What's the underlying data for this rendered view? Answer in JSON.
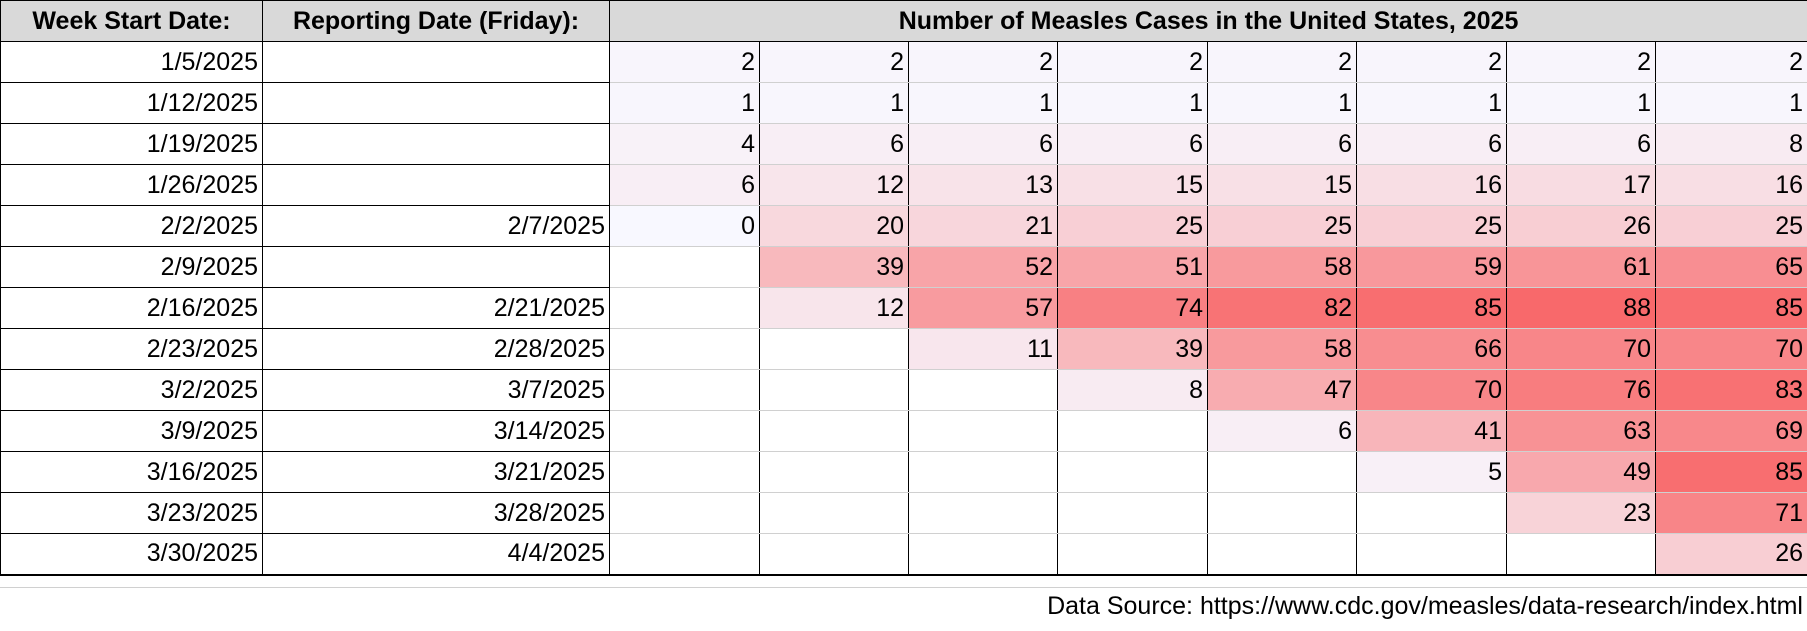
{
  "headers": {
    "week_start": "Week Start Date:",
    "reporting_date": "Reporting Date (Friday):",
    "cases_title": "Number of Measles Cases in the United States, 2025"
  },
  "rows": [
    {
      "week_start": "1/5/2025",
      "reporting_date": "",
      "values": [
        2,
        2,
        2,
        2,
        2,
        2,
        2,
        2
      ]
    },
    {
      "week_start": "1/12/2025",
      "reporting_date": "",
      "values": [
        1,
        1,
        1,
        1,
        1,
        1,
        1,
        1
      ]
    },
    {
      "week_start": "1/19/2025",
      "reporting_date": "",
      "values": [
        4,
        6,
        6,
        6,
        6,
        6,
        6,
        8
      ]
    },
    {
      "week_start": "1/26/2025",
      "reporting_date": "",
      "values": [
        6,
        12,
        13,
        15,
        15,
        16,
        17,
        16
      ]
    },
    {
      "week_start": "2/2/2025",
      "reporting_date": "2/7/2025",
      "values": [
        0,
        20,
        21,
        25,
        25,
        25,
        26,
        25
      ]
    },
    {
      "week_start": "2/9/2025",
      "reporting_date": "",
      "values": [
        null,
        39,
        52,
        51,
        58,
        59,
        61,
        65
      ]
    },
    {
      "week_start": "2/16/2025",
      "reporting_date": "2/21/2025",
      "values": [
        null,
        12,
        57,
        74,
        82,
        85,
        88,
        85
      ]
    },
    {
      "week_start": "2/23/2025",
      "reporting_date": "2/28/2025",
      "values": [
        null,
        null,
        11,
        39,
        58,
        66,
        70,
        70
      ]
    },
    {
      "week_start": "3/2/2025",
      "reporting_date": "3/7/2025",
      "values": [
        null,
        null,
        null,
        8,
        47,
        70,
        76,
        83
      ]
    },
    {
      "week_start": "3/9/2025",
      "reporting_date": "3/14/2025",
      "values": [
        null,
        null,
        null,
        null,
        6,
        41,
        63,
        69
      ]
    },
    {
      "week_start": "3/16/2025",
      "reporting_date": "3/21/2025",
      "values": [
        null,
        null,
        null,
        null,
        null,
        5,
        49,
        85
      ]
    },
    {
      "week_start": "3/23/2025",
      "reporting_date": "3/28/2025",
      "values": [
        null,
        null,
        null,
        null,
        null,
        null,
        23,
        71
      ]
    },
    {
      "week_start": "3/30/2025",
      "reporting_date": "4/4/2025",
      "values": [
        null,
        null,
        null,
        null,
        null,
        null,
        null,
        26
      ]
    }
  ],
  "heat_scale": {
    "min_color": "#f8f8ff",
    "max_color": "#f8696b",
    "max_value": 88
  },
  "source": "Data Source: https://www.cdc.gov/measles/data-research/index.html"
}
